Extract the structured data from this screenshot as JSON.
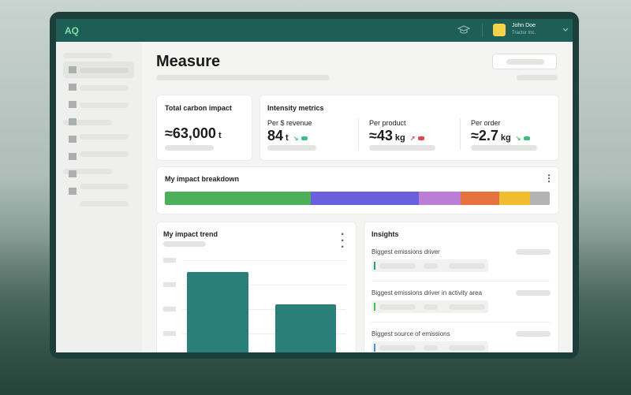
{
  "header": {
    "logo": "AQ",
    "user_name": "John Doe",
    "company": "Tractor Inc."
  },
  "page": {
    "title": "Measure"
  },
  "total_card": {
    "title": "Total carbon impact",
    "value": "≈63,000",
    "unit": "t"
  },
  "intensity_card": {
    "title": "Intensity metrics",
    "metrics": [
      {
        "label": "Per $ revenue",
        "value": "84",
        "unit": "t"
      },
      {
        "label": "Per product",
        "value": "≈43",
        "unit": "kg"
      },
      {
        "label": "Per order",
        "value": "≈2.7",
        "unit": "kg"
      }
    ]
  },
  "breakdown_card": {
    "title": "My impact breakdown"
  },
  "trend_card": {
    "title": "My impact trend"
  },
  "insights_card": {
    "title": "Insights",
    "items": [
      "Biggest emissions driver",
      "Biggest emissions driver in activity area",
      "Biggest source of emissions"
    ]
  }
}
